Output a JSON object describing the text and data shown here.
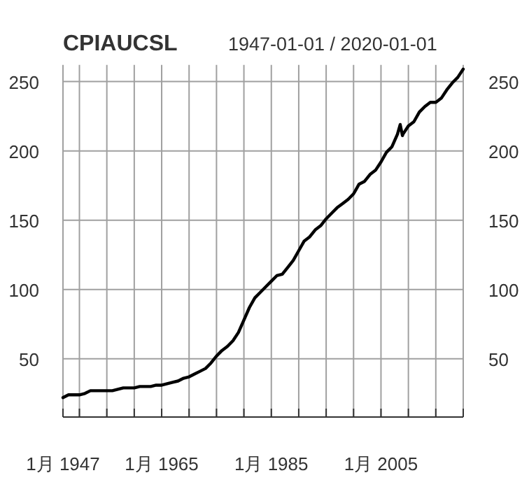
{
  "chart_data": {
    "type": "line",
    "title": "CPIAUCSL",
    "subtitle": "1947-01-01 / 2020-01-01",
    "x": [
      "1947-01",
      "1948-01",
      "1949-01",
      "1950-01",
      "1951-01",
      "1952-01",
      "1953-01",
      "1954-01",
      "1955-01",
      "1956-01",
      "1957-01",
      "1958-01",
      "1959-01",
      "1960-01",
      "1961-01",
      "1962-01",
      "1963-01",
      "1964-01",
      "1965-01",
      "1966-01",
      "1967-01",
      "1968-01",
      "1969-01",
      "1970-01",
      "1971-01",
      "1972-01",
      "1973-01",
      "1974-01",
      "1975-01",
      "1976-01",
      "1977-01",
      "1978-01",
      "1979-01",
      "1980-01",
      "1981-01",
      "1982-01",
      "1983-01",
      "1984-01",
      "1985-01",
      "1986-01",
      "1987-01",
      "1988-01",
      "1989-01",
      "1990-01",
      "1991-01",
      "1992-01",
      "1993-01",
      "1994-01",
      "1995-01",
      "1996-01",
      "1997-01",
      "1998-01",
      "1999-01",
      "2000-01",
      "2001-01",
      "2002-01",
      "2003-01",
      "2004-01",
      "2005-01",
      "2006-01",
      "2007-01",
      "2008-01",
      "2008-07",
      "2008-12",
      "2009-01",
      "2010-01",
      "2011-01",
      "2012-01",
      "2013-01",
      "2014-01",
      "2015-01",
      "2016-01",
      "2017-01",
      "2018-01",
      "2019-01",
      "2020-01"
    ],
    "series": [
      {
        "color": "#000000",
        "values": [
          22,
          24,
          24,
          24,
          25,
          27,
          27,
          27,
          27,
          27,
          28,
          29,
          29,
          29,
          30,
          30,
          30,
          31,
          31,
          32,
          33,
          34,
          36,
          37,
          39,
          41,
          43,
          47,
          52,
          56,
          59,
          63,
          69,
          78,
          87,
          94,
          98,
          102,
          106,
          110,
          111,
          116,
          121,
          128,
          135,
          138,
          143,
          146,
          151,
          155,
          159,
          162,
          165,
          169,
          176,
          178,
          183,
          186,
          192,
          199,
          203,
          212,
          219,
          211,
          212,
          218,
          221,
          228,
          232,
          235,
          235,
          238,
          244,
          249,
          253,
          259
        ]
      }
    ],
    "xlim": [
      "1947-01",
      "2020-01"
    ],
    "xticks": [
      {
        "value": "1947-01",
        "label": "1月 1947"
      },
      {
        "value": "1950-01",
        "label": null
      },
      {
        "value": "1955-01",
        "label": null
      },
      {
        "value": "1960-01",
        "label": null
      },
      {
        "value": "1965-01",
        "label": "1月 1965"
      },
      {
        "value": "1970-01",
        "label": null
      },
      {
        "value": "1975-01",
        "label": null
      },
      {
        "value": "1980-01",
        "label": null
      },
      {
        "value": "1985-01",
        "label": "1月 1985"
      },
      {
        "value": "1990-01",
        "label": null
      },
      {
        "value": "1995-01",
        "label": null
      },
      {
        "value": "2000-01",
        "label": null
      },
      {
        "value": "2005-01",
        "label": "1月 2005"
      },
      {
        "value": "2010-01",
        "label": null
      },
      {
        "value": "2015-01",
        "label": null
      },
      {
        "value": "2020-01",
        "label": null
      }
    ],
    "ylim": [
      8,
      262
    ],
    "yticks": [
      50,
      100,
      150,
      200,
      250
    ],
    "y2lim": [
      8,
      262
    ],
    "y2ticks": [
      50,
      100,
      150,
      200,
      250
    ],
    "grid": true,
    "marker": "none",
    "line_style": "solid"
  }
}
